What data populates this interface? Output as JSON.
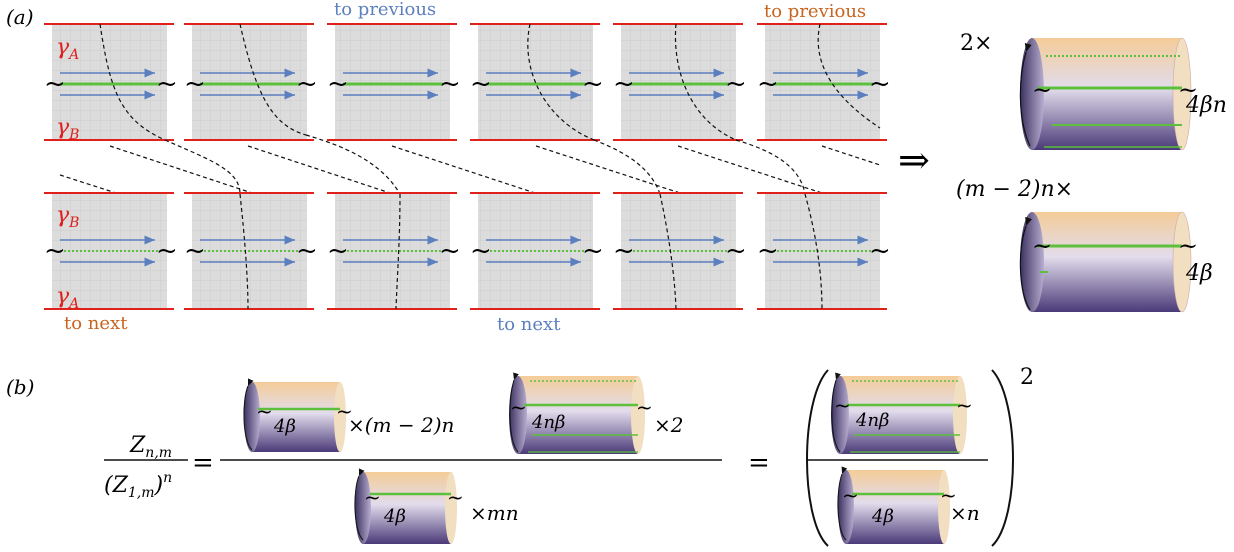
{
  "panel_a": {
    "label": "(a)",
    "gamma_a": "γ",
    "gamma_a_sub": "A",
    "gamma_b": "γ",
    "gamma_b_sub": "B",
    "tilde": "~",
    "to_previous_blue": "to previous",
    "to_previous_orange": "to previous",
    "to_next_orange": "to next",
    "to_next_blue": "to next",
    "arrow": "⇒",
    "mult_2": "2×",
    "mult_m2n": "(m − 2)n×",
    "cyl_label_4bn": "4βn",
    "cyl_label_4b": "4β"
  },
  "panel_b": {
    "label": "(b)",
    "lhs_num": "Z",
    "lhs_num_sub": "n,m",
    "lhs_den": "(Z",
    "lhs_den_sub": "1,m",
    "lhs_den_tail": ")",
    "lhs_den_sup": "n",
    "equals": "=",
    "cyl_4b": "4β",
    "cyl_4nb": "4nβ",
    "times_m2n": "×(m − 2)n",
    "times_2": "×2",
    "times_mn": "×mn",
    "times_n": "×n",
    "power": "2"
  },
  "colors": {
    "red": "#e0201b",
    "blue": "#5b7fbf",
    "orange": "#c8641e",
    "green": "#5cc03c",
    "grid_bg": "#dcdcdc",
    "cyl_top": "#f0c898",
    "cyl_bottom": "#4a3a78"
  }
}
